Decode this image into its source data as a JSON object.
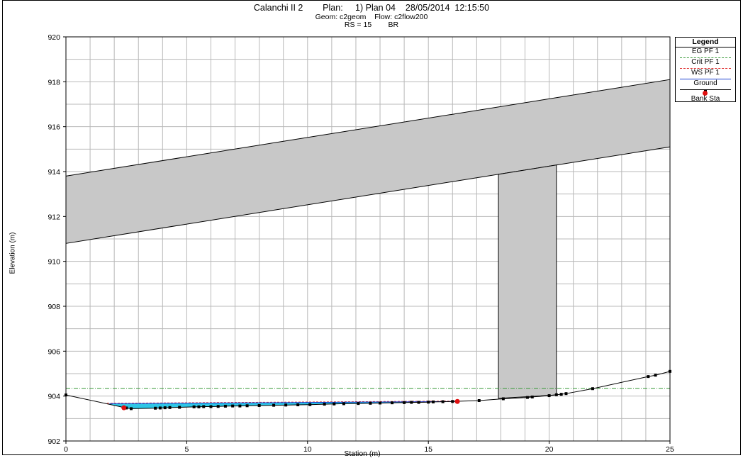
{
  "header": {
    "line1": "Calanchi II 2        Plan:     1) Plan 04    28/05/2014  12:15:50",
    "line2": "Geom: c2geom    Flow: c2flow200",
    "line3": "RS = 15        BR"
  },
  "legend": {
    "title": "Legend",
    "items": [
      {
        "label": "EG PF 1",
        "color": "#3a9a3a",
        "style": "dash-dot"
      },
      {
        "label": "Crit PF 1",
        "color": "#e03030",
        "style": "dashed"
      },
      {
        "label": "WS PF 1",
        "color": "#1a3fd0",
        "style": "solid"
      },
      {
        "label": "Ground",
        "color": "#000000",
        "style": "solid-markers"
      },
      {
        "label": "Bank Sta",
        "color": "#e01010",
        "style": "dot"
      }
    ]
  },
  "chart_data": {
    "type": "line",
    "xlabel": "Station (m)",
    "ylabel": "Elevation (m)",
    "xlim": [
      0,
      25
    ],
    "ylim": [
      902,
      920
    ],
    "x_ticks": [
      0,
      5,
      10,
      15,
      20,
      25
    ],
    "y_ticks": [
      902,
      904,
      906,
      908,
      910,
      912,
      914,
      916,
      918,
      920
    ],
    "grid": true,
    "legend_position": "right-top",
    "deck": {
      "top": [
        [
          0,
          913.8
        ],
        [
          25,
          918.1
        ]
      ],
      "bottom": [
        [
          0,
          910.8
        ],
        [
          25,
          915.1
        ]
      ],
      "color": "#c8c8c8"
    },
    "pier": {
      "x_left": 17.9,
      "x_right": 20.3,
      "y_bottom": 903.9,
      "color": "#c8c8c8"
    },
    "series": [
      {
        "name": "EG PF 1",
        "color": "#3a9a3a",
        "x": [
          0,
          25
        ],
        "y": [
          904.35,
          904.35
        ]
      },
      {
        "name": "Crit PF 1",
        "color": "#e03030",
        "x": [
          1.7,
          16.2
        ],
        "y": [
          903.68,
          903.78
        ]
      },
      {
        "name": "WS PF 1",
        "color": "#1a3fd0",
        "x": [
          1.8,
          16.2
        ],
        "y": [
          903.66,
          903.76
        ]
      },
      {
        "name": "Ground",
        "color": "#000000",
        "x": [
          0,
          2.5,
          2.7,
          3.7,
          3.9,
          4.1,
          4.3,
          4.7,
          5.3,
          5.5,
          5.7,
          6.0,
          6.3,
          6.6,
          6.9,
          7.2,
          7.5,
          8.0,
          8.6,
          9.1,
          9.6,
          10.1,
          10.7,
          11.1,
          11.5,
          12.1,
          12.6,
          13.0,
          13.5,
          14.0,
          14.3,
          14.6,
          15.0,
          15.2,
          15.6,
          16.0,
          16.2,
          17.1,
          18.1,
          19.1,
          19.3,
          20.0,
          20.3,
          20.5,
          20.7,
          21.8,
          24.1,
          24.4,
          25.0
        ],
        "y": [
          904.05,
          903.47,
          903.44,
          903.46,
          903.47,
          903.48,
          903.49,
          903.5,
          903.52,
          903.52,
          903.53,
          903.53,
          903.54,
          903.55,
          903.56,
          903.56,
          903.57,
          903.58,
          903.59,
          903.6,
          903.61,
          903.62,
          903.64,
          903.65,
          903.66,
          903.67,
          903.68,
          903.69,
          903.7,
          903.71,
          903.72,
          903.72,
          903.73,
          903.74,
          903.75,
          903.76,
          903.77,
          903.8,
          903.88,
          903.94,
          903.96,
          904.02,
          904.06,
          904.08,
          904.11,
          904.33,
          904.87,
          904.93,
          905.1
        ]
      },
      {
        "name": "Bank Sta",
        "color": "#e01010",
        "x": [
          2.4,
          16.2
        ],
        "y": [
          903.48,
          903.76
        ]
      }
    ]
  }
}
